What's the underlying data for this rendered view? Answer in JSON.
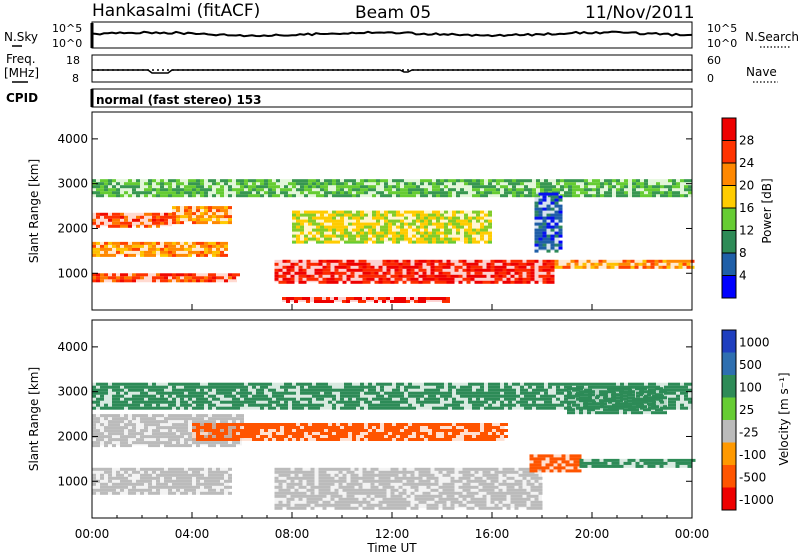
{
  "header": {
    "station": "Hankasalmi (fitACF)",
    "beam": "Beam 05",
    "date": "11/Nov/2011"
  },
  "noise_panel": {
    "left_label": "N.Sky",
    "right_label": "N.Search",
    "tick_top": "10^5",
    "tick_bottom": "10^0"
  },
  "freq_panel": {
    "left_label_line1": "Freq.",
    "left_label_line2": "[MHz]",
    "right_label": "Nave",
    "left_ticks": [
      "18",
      "8"
    ],
    "right_ticks": [
      "60",
      "0"
    ]
  },
  "cpid": {
    "label": "CPID",
    "text": "normal (fast stereo) 153"
  },
  "power_panel": {
    "ylabel": "Slant Range [km]",
    "colorbar_label": "Power [dB]",
    "colorbar_ticks": [
      "28",
      "24",
      "20",
      "16",
      "12",
      "8",
      "4"
    ]
  },
  "velocity_panel": {
    "ylabel": "Slant Range [km]",
    "colorbar_label": "Velocity [m s⁻¹]",
    "colorbar_ticks": [
      "1000",
      "500",
      "100",
      "25",
      "-25",
      "-100",
      "-500",
      "-1000"
    ]
  },
  "xaxis": {
    "label": "Time UT",
    "ticks": [
      "00:00",
      "04:00",
      "08:00",
      "12:00",
      "16:00",
      "20:00",
      "00:00"
    ]
  },
  "colors": {
    "power_scale": [
      "#0000ff",
      "#1f5fa8",
      "#2e8b57",
      "#66cc33",
      "#ffcc00",
      "#ff8800",
      "#ff3300",
      "#ee0000"
    ],
    "velocity_scale": [
      "#1f3fbf",
      "#2e6fb0",
      "#2e8b57",
      "#66cc33",
      "#bbbbbb",
      "#ff9900",
      "#ff5500",
      "#ee0000"
    ]
  },
  "chart_data": [
    {
      "type": "heatmap",
      "title": "Power",
      "ylabel": "Slant Range [km]",
      "xlabel": "Time UT",
      "xlim": [
        0,
        24
      ],
      "ylim": [
        180,
        4600
      ],
      "yticks": [
        1000,
        2000,
        3000,
        4000
      ],
      "zlabel": "Power [dB]",
      "zlim": [
        0,
        32
      ],
      "bands": [
        {
          "t": [
            0.0,
            5.8
          ],
          "range": [
            800,
            1000
          ],
          "power": 26
        },
        {
          "t": [
            0.0,
            5.3
          ],
          "range": [
            1400,
            1700
          ],
          "power": 22
        },
        {
          "t": [
            0.0,
            3.2
          ],
          "range": [
            2050,
            2350
          ],
          "power": 26
        },
        {
          "t": [
            3.2,
            5.6
          ],
          "range": [
            2150,
            2500
          ],
          "power": 22
        },
        {
          "t": [
            7.3,
            18.5
          ],
          "range": [
            800,
            1300
          ],
          "power": 28
        },
        {
          "t": [
            7.6,
            14.3
          ],
          "range": [
            360,
            470
          ],
          "power": 30
        },
        {
          "t": [
            18.5,
            24.0
          ],
          "range": [
            1100,
            1300
          ],
          "power": 22
        },
        {
          "t": [
            8.0,
            16.0
          ],
          "range": [
            1700,
            2400
          ],
          "power": 16
        },
        {
          "t": [
            0.0,
            24.0
          ],
          "range": [
            2700,
            3100
          ],
          "power": 12
        },
        {
          "t": [
            17.7,
            18.7
          ],
          "range": [
            1500,
            2800
          ],
          "power": 6
        }
      ]
    },
    {
      "type": "heatmap",
      "title": "Velocity",
      "ylabel": "Slant Range [km]",
      "xlabel": "Time UT",
      "xlim": [
        0,
        24
      ],
      "ylim": [
        180,
        4600
      ],
      "yticks": [
        1000,
        2000,
        3000,
        4000
      ],
      "zlabel": "Velocity [m s⁻¹]",
      "zlim": [
        -1000,
        1000
      ],
      "bands": [
        {
          "t": [
            0.0,
            5.5
          ],
          "range": [
            700,
            1300
          ],
          "velocity": 0
        },
        {
          "t": [
            7.3,
            18.0
          ],
          "range": [
            400,
            1300
          ],
          "velocity": 0
        },
        {
          "t": [
            0.0,
            6.0
          ],
          "range": [
            1800,
            2500
          ],
          "velocity": 0
        },
        {
          "t": [
            4.0,
            16.5
          ],
          "range": [
            1900,
            2300
          ],
          "velocity": -150
        },
        {
          "t": [
            17.5,
            19.5
          ],
          "range": [
            1200,
            1600
          ],
          "velocity": -300
        },
        {
          "t": [
            19.5,
            24.0
          ],
          "range": [
            1300,
            1500
          ],
          "velocity": 150
        },
        {
          "t": [
            19.0,
            23.0
          ],
          "range": [
            2500,
            3100
          ],
          "velocity": 150
        },
        {
          "t": [
            0.0,
            24.0
          ],
          "range": [
            2600,
            3200
          ],
          "velocity": 100
        }
      ]
    }
  ]
}
